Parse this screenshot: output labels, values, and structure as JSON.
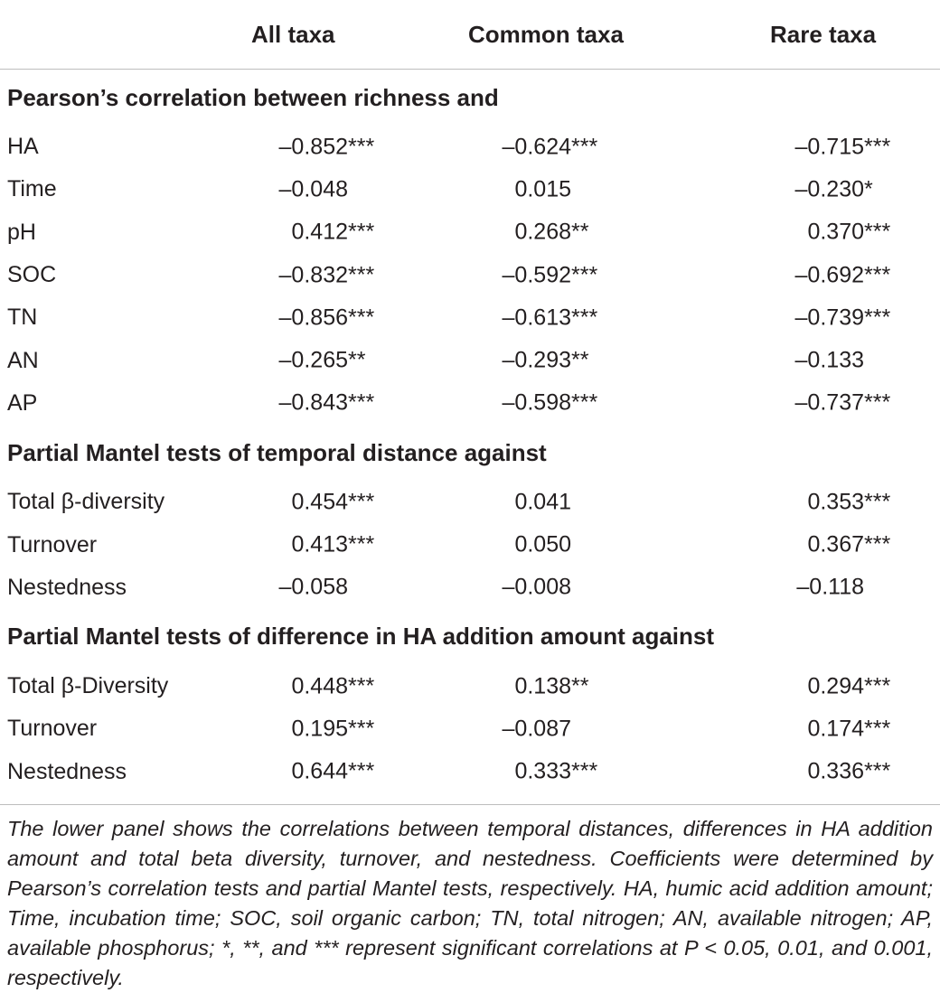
{
  "header": {
    "col1": "All taxa",
    "col2": "Common taxa",
    "col3": "Rare taxa"
  },
  "sections": [
    {
      "title": "Pearson’s correlation between richness and",
      "rows": [
        {
          "label": "HA",
          "v1": "–0.852",
          "s1": "***",
          "v2": "–0.624",
          "s2": "***",
          "v3": "–0.715",
          "s3": "***"
        },
        {
          "label": "Time",
          "v1": "–0.048",
          "s1": "",
          "v2": "0.015",
          "s2": "",
          "v3": "–0.230",
          "s3": "*"
        },
        {
          "label": "pH",
          "v1": "0.412",
          "s1": "***",
          "v2": "0.268",
          "s2": "**",
          "v3": "0.370",
          "s3": "***"
        },
        {
          "label": "SOC",
          "v1": "–0.832",
          "s1": "***",
          "v2": "–0.592",
          "s2": "***",
          "v3": "–0.692",
          "s3": "***"
        },
        {
          "label": "TN",
          "v1": "–0.856",
          "s1": "***",
          "v2": "–0.613",
          "s2": "***",
          "v3": "–0.739",
          "s3": "***"
        },
        {
          "label": "AN",
          "v1": "–0.265",
          "s1": "**",
          "v2": "–0.293",
          "s2": "**",
          "v3": "–0.133",
          "s3": ""
        },
        {
          "label": "AP",
          "v1": "–0.843",
          "s1": "***",
          "v2": "–0.598",
          "s2": "***",
          "v3": "–0.737",
          "s3": "***"
        }
      ]
    },
    {
      "title": "Partial Mantel tests of temporal distance against",
      "rows": [
        {
          "label": "Total β-diversity",
          "v1": "0.454",
          "s1": "***",
          "v2": "0.041",
          "s2": "",
          "v3": "0.353",
          "s3": "***"
        },
        {
          "label": "Turnover",
          "v1": "0.413",
          "s1": "***",
          "v2": "0.050",
          "s2": "",
          "v3": "0.367",
          "s3": "***"
        },
        {
          "label": "Nestedness",
          "v1": "–0.058",
          "s1": "",
          "v2": "–0.008",
          "s2": "",
          "v3": "–0.118",
          "s3": ""
        }
      ]
    },
    {
      "title": "Partial Mantel tests of difference in HA addition amount against",
      "rows": [
        {
          "label": "Total β-Diversity",
          "v1": "0.448",
          "s1": "***",
          "v2": "0.138",
          "s2": "**",
          "v3": "0.294",
          "s3": "***"
        },
        {
          "label": "Turnover",
          "v1": "0.195",
          "s1": "***",
          "v2": "–0.087",
          "s2": "",
          "v3": "0.174",
          "s3": "***"
        },
        {
          "label": "Nestedness",
          "v1": "0.644",
          "s1": "***",
          "v2": "0.333",
          "s2": "***",
          "v3": "0.336",
          "s3": "***"
        }
      ]
    }
  ],
  "caption": "The lower panel shows the correlations between temporal distances, differences in HA addition amount and total beta diversity, turnover, and nestedness. Coefficients were determined by Pearson’s correlation tests and partial Mantel tests, respectively. HA, humic acid addition amount; Time, incubation time; SOC, soil organic carbon; TN, total nitrogen; AN, available nitrogen; AP, available phosphorus; *, **, and *** represent significant correlations at P < 0.05, 0.01, and 0.001, respectively."
}
